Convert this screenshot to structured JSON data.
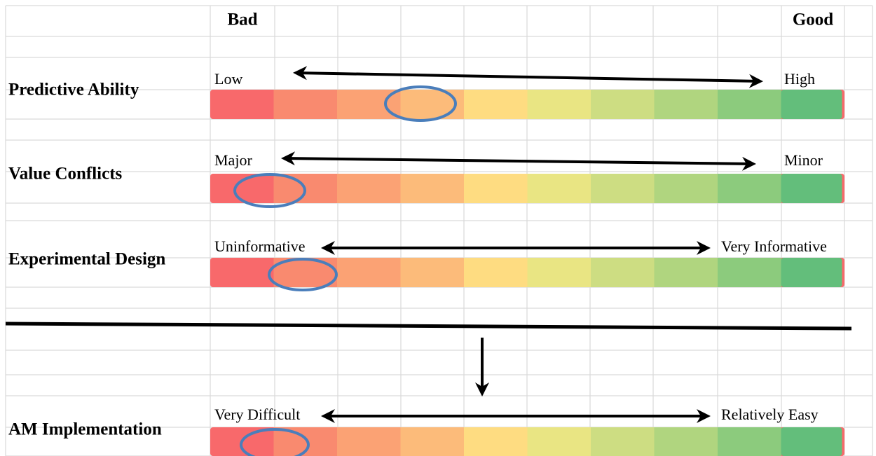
{
  "header": {
    "bad": "Bad",
    "good": "Good"
  },
  "rows": [
    {
      "name": "Predictive Ability",
      "low": "Low",
      "high": "High"
    },
    {
      "name": "Value Conflicts",
      "low": "Major",
      "high": "Minor"
    },
    {
      "name": "Experimental Design",
      "low": "Uninformative",
      "high": "Very Informative"
    },
    {
      "name": "AM Implementation",
      "low": "Very Difficult",
      "high": "Relatively Easy"
    }
  ]
}
